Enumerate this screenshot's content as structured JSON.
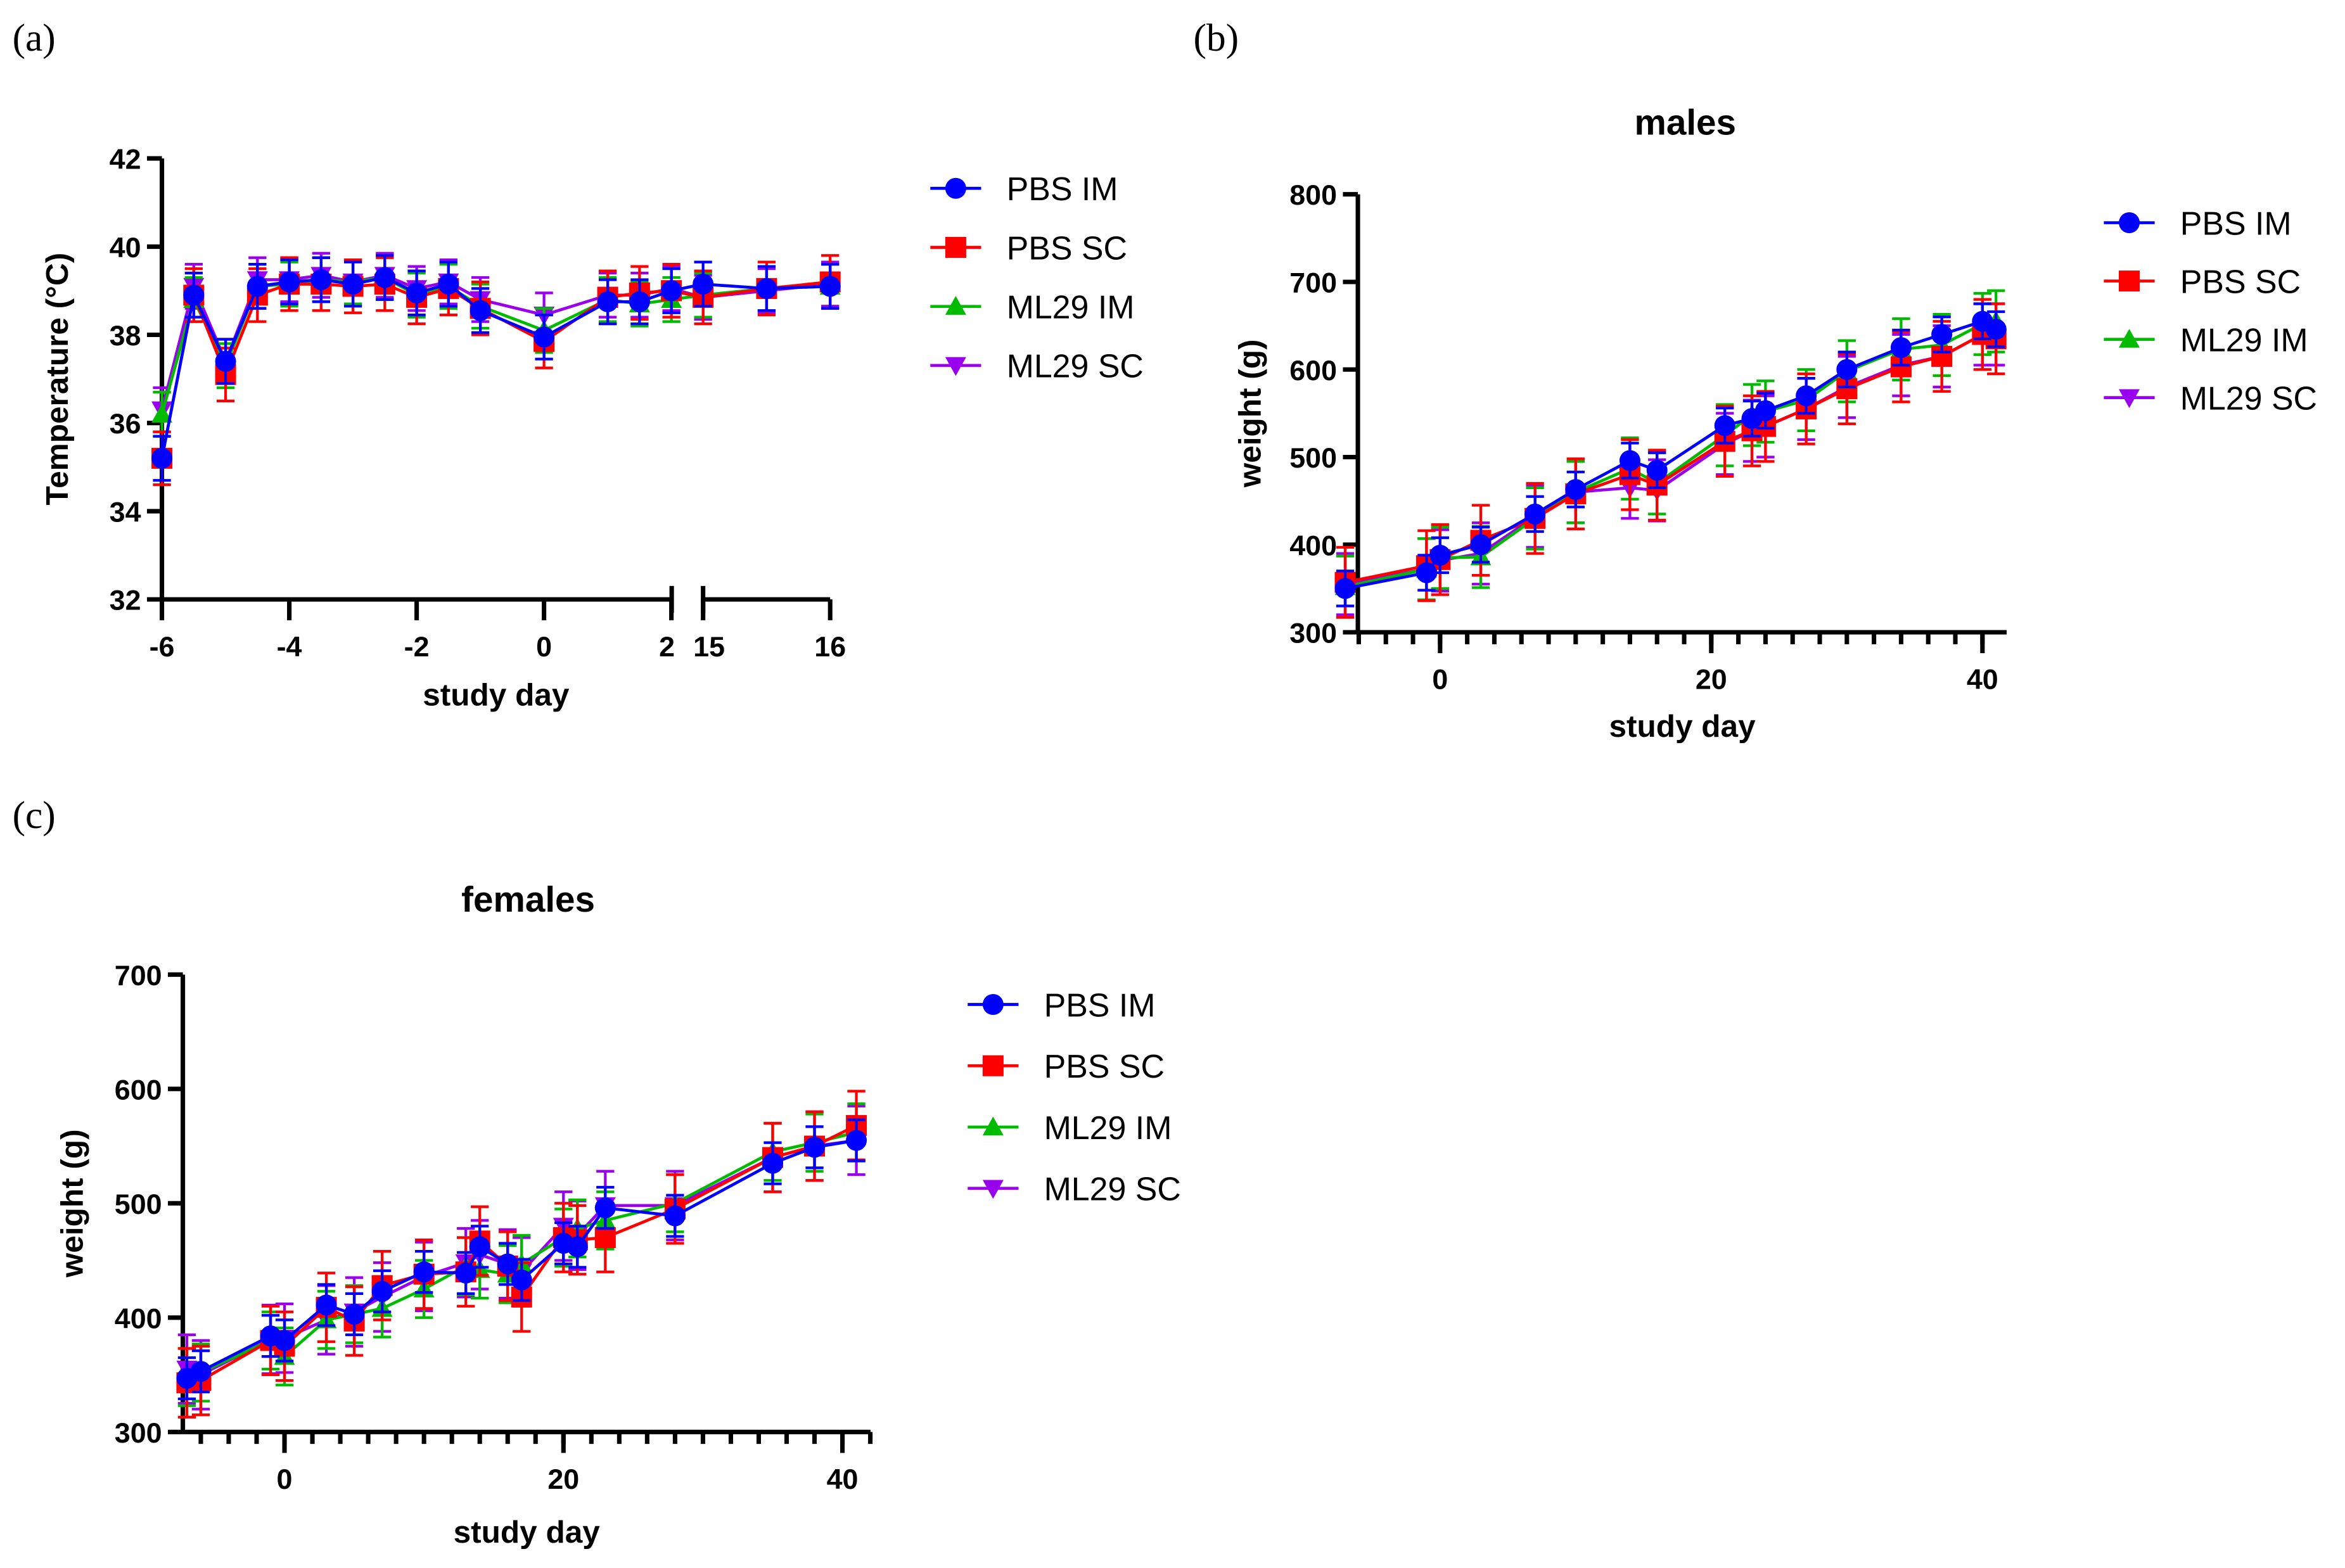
{
  "panel_labels": [
    "(a)",
    "(b)",
    "(c)"
  ],
  "chart_data": [
    {
      "type": "line",
      "panel": "(a)",
      "title": "",
      "xlabel": "study day",
      "ylabel": "Temperature (°C)",
      "ylim": [
        32,
        42
      ],
      "yticks": [
        32,
        34,
        36,
        38,
        40,
        42
      ],
      "x_segments": [
        [
          -6,
          2
        ],
        [
          15,
          16
        ]
      ],
      "xticks": [
        -6,
        -4,
        -2,
        0,
        2,
        15,
        16
      ],
      "xtick_labels": [
        "-6",
        "-4",
        "-2",
        "0",
        "2",
        "15",
        "16"
      ],
      "x": [
        -6,
        -5.5,
        -5,
        -4.5,
        -4,
        -3.5,
        -3,
        -2.5,
        -2,
        -1.5,
        -1,
        0,
        1,
        1.5,
        2,
        15,
        15.5,
        16
      ],
      "legend": "right",
      "series": [
        {
          "name": "PBS IM",
          "color": "#0000ff",
          "marker": "circle",
          "err": 0.5,
          "values": [
            35.2,
            38.9,
            37.4,
            39.1,
            39.2,
            39.25,
            39.15,
            39.3,
            38.95,
            39.15,
            38.55,
            37.95,
            38.75,
            38.75,
            39.0,
            39.15,
            39.05,
            39.1
          ]
        },
        {
          "name": "PBS SC",
          "color": "#ff0000",
          "marker": "square",
          "err": 0.6,
          "values": [
            35.2,
            38.9,
            37.1,
            38.9,
            39.15,
            39.15,
            39.1,
            39.15,
            38.85,
            39.05,
            38.6,
            37.85,
            38.85,
            38.95,
            39.0,
            38.85,
            39.05,
            39.2
          ]
        },
        {
          "name": "ML29 IM",
          "color": "#00bb00",
          "marker": "triangle-up",
          "err": 0.5,
          "values": [
            36.2,
            38.8,
            37.3,
            39.1,
            39.15,
            39.25,
            39.2,
            39.3,
            38.9,
            39.1,
            38.65,
            38.1,
            38.8,
            38.7,
            38.8,
            38.9,
            39.05,
            39.1
          ]
        },
        {
          "name": "ML29 SC",
          "color": "#9900ee",
          "marker": "triangle-down",
          "err": 0.5,
          "values": [
            36.3,
            39.1,
            37.4,
            39.25,
            39.25,
            39.35,
            39.2,
            39.35,
            39.05,
            39.2,
            38.8,
            38.45,
            38.9,
            38.9,
            39.05,
            38.85,
            39.0,
            39.15
          ]
        }
      ]
    },
    {
      "type": "line",
      "panel": "(b)",
      "title": "males",
      "xlabel": "study day",
      "ylabel": "weight (g)",
      "ylim": [
        300,
        800
      ],
      "yticks": [
        300,
        400,
        500,
        600,
        700,
        800
      ],
      "xlim": [
        -6,
        42
      ],
      "xticks": [
        0,
        20,
        40
      ],
      "xtick_labels": [
        "0",
        "20",
        "40"
      ],
      "xminor_step": 2,
      "x": [
        -7,
        -1,
        0,
        3,
        7,
        10,
        14,
        16,
        21,
        23,
        24,
        27,
        30,
        34,
        37,
        40,
        41
      ],
      "legend": "right",
      "series": [
        {
          "name": "PBS IM",
          "color": "#0000ff",
          "marker": "circle",
          "err": 20,
          "values": [
            350,
            368,
            388,
            400,
            435,
            463,
            496,
            485,
            536,
            544,
            553,
            570,
            600,
            625,
            640,
            655,
            646
          ]
        },
        {
          "name": "PBS SC",
          "color": "#ff0000",
          "marker": "square",
          "err": 40,
          "values": [
            357,
            376,
            383,
            405,
            430,
            458,
            480,
            468,
            518,
            530,
            535,
            555,
            578,
            603,
            615,
            640,
            635
          ]
        },
        {
          "name": "ML29 IM",
          "color": "#00bb00",
          "marker": "triangle-up",
          "err": 35,
          "values": [
            352,
            372,
            385,
            386,
            430,
            460,
            487,
            470,
            525,
            548,
            552,
            565,
            598,
            623,
            628,
            652,
            655
          ]
        },
        {
          "name": "ML29 SC",
          "color": "#9900ee",
          "marker": "triangle-down",
          "err": 35,
          "values": [
            355,
            372,
            382,
            390,
            432,
            460,
            465,
            462,
            515,
            530,
            535,
            555,
            580,
            605,
            615,
            640,
            640
          ]
        }
      ]
    },
    {
      "type": "line",
      "panel": "(c)",
      "title": "females",
      "xlabel": "study day",
      "ylabel": "weight (g)",
      "ylim": [
        300,
        700
      ],
      "yticks": [
        300,
        400,
        500,
        600,
        700
      ],
      "xlim": [
        -7,
        42
      ],
      "xticks": [
        0,
        20,
        40
      ],
      "xtick_labels": [
        "0",
        "20",
        "40"
      ],
      "xminor_step": 2,
      "x": [
        -7,
        -6,
        -1,
        0,
        3,
        5,
        7,
        10,
        13,
        14,
        16,
        17,
        20,
        21,
        23,
        28,
        35,
        38,
        41
      ],
      "legend": "right",
      "series": [
        {
          "name": "PBS IM",
          "color": "#0000ff",
          "marker": "circle",
          "err": 18,
          "values": [
            347,
            353,
            384,
            380,
            411,
            403,
            423,
            440,
            439,
            462,
            447,
            433,
            465,
            462,
            496,
            489,
            535,
            549,
            555
          ]
        },
        {
          "name": "PBS SC",
          "color": "#ff0000",
          "marker": "square",
          "err": 30,
          "values": [
            343,
            345,
            380,
            375,
            409,
            397,
            428,
            438,
            440,
            467,
            445,
            418,
            470,
            468,
            470,
            495,
            540,
            550,
            568
          ]
        },
        {
          "name": "ML29 IM",
          "color": "#00bb00",
          "marker": "triangle-up",
          "err": 25,
          "values": [
            348,
            352,
            380,
            366,
            398,
            403,
            408,
            425,
            445,
            442,
            438,
            447,
            470,
            478,
            485,
            500,
            545,
            553,
            562
          ]
        },
        {
          "name": "ML29 SC",
          "color": "#9900ee",
          "marker": "triangle-down",
          "err": 30,
          "values": [
            355,
            350,
            381,
            382,
            398,
            405,
            418,
            436,
            448,
            455,
            447,
            440,
            480,
            472,
            498,
            498,
            540,
            550,
            555
          ]
        }
      ]
    }
  ]
}
